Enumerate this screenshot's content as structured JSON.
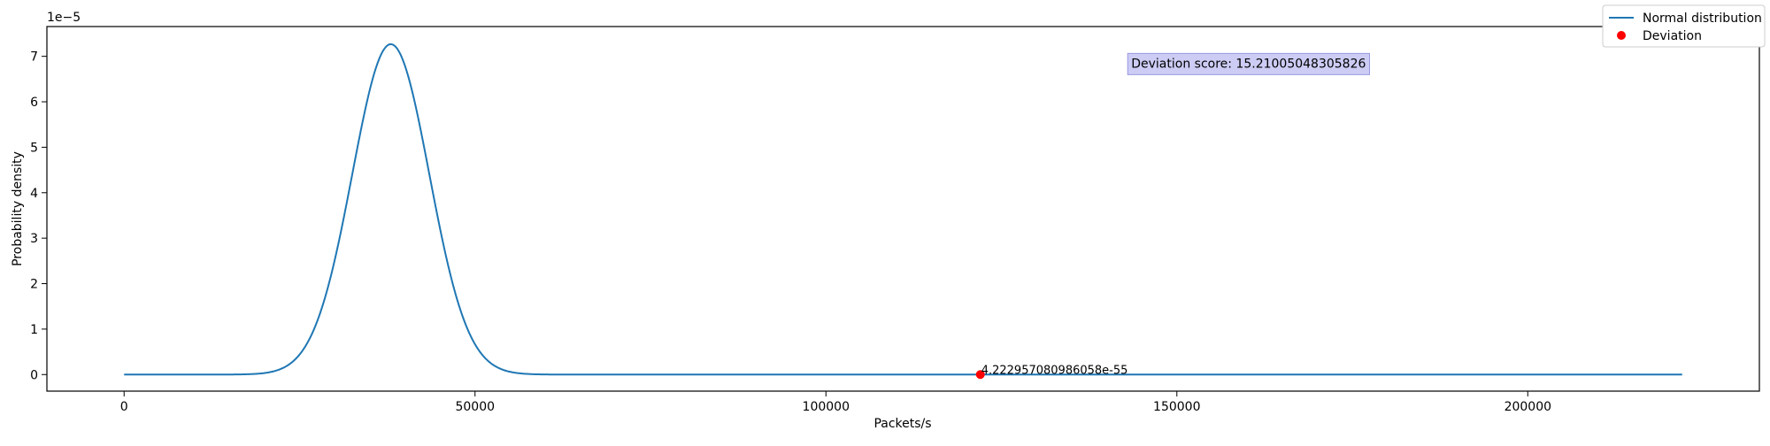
{
  "chart_data": {
    "type": "line",
    "title": "",
    "xlabel": "Packets/s",
    "ylabel": "Probability density",
    "y_offset_label": "1e−5",
    "xlim": [
      -11000,
      233000
    ],
    "ylim": [
      -3.645e-06,
      7.655e-05
    ],
    "x_ticks": [
      0,
      50000,
      100000,
      150000,
      200000
    ],
    "x_tick_labels": [
      "0",
      "50000",
      "100000",
      "150000",
      "200000"
    ],
    "y_ticks": [
      0,
      1e-05,
      2e-05,
      3e-05,
      4e-05,
      5e-05,
      6e-05,
      7e-05
    ],
    "y_tick_labels": [
      "0",
      "1",
      "2",
      "3",
      "4",
      "5",
      "6",
      "7"
    ],
    "grid": false,
    "legend_position": "top-right",
    "series": [
      {
        "name": "Normal distribution",
        "kind": "line",
        "color": "#1f77b4",
        "distribution": {
          "mean": 38000,
          "std": 5490
        },
        "x_range": [
          0,
          222000
        ]
      },
      {
        "name": "Deviation",
        "kind": "scatter",
        "color": "#ff0000",
        "points": [
          {
            "x": 122000,
            "y": 4.222957080986058e-55
          }
        ]
      }
    ],
    "annotations": [
      {
        "text": "4.222957080986058e-55",
        "x": 122000,
        "y": 4.222957080986058e-55
      },
      {
        "text": "Deviation score: 15.21005048305826",
        "x": 143500,
        "y": 6.85e-05,
        "box_color": "#ccccf5",
        "box_edge": "#9999e0"
      }
    ]
  }
}
